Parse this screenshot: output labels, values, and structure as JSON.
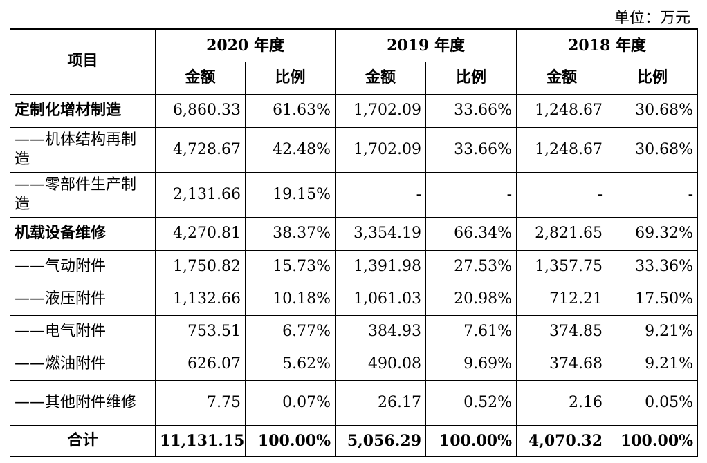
{
  "unit": "单位：万元",
  "header": {
    "item": "项目",
    "years": [
      "2020 年度",
      "2019 年度",
      "2018 年度"
    ],
    "amount": "金额",
    "ratio": "比例"
  },
  "rows": [
    {
      "label": "定制化增材制造",
      "bold": true,
      "cells": [
        "6,860.33",
        "61.63%",
        "1,702.09",
        "33.66%",
        "1,248.67",
        "30.68%"
      ]
    },
    {
      "label": "——机体结构再制造",
      "bold": false,
      "cells": [
        "4,728.67",
        "42.48%",
        "1,702.09",
        "33.66%",
        "1,248.67",
        "30.68%"
      ]
    },
    {
      "label": "——零部件生产制造",
      "bold": false,
      "cells": [
        "2,131.66",
        "19.15%",
        "-",
        "-",
        "-",
        "-"
      ]
    },
    {
      "label": "机载设备维修",
      "bold": true,
      "cells": [
        "4,270.81",
        "38.37%",
        "3,354.19",
        "66.34%",
        "2,821.65",
        "69.32%"
      ]
    },
    {
      "label": "——气动附件",
      "bold": false,
      "cells": [
        "1,750.82",
        "15.73%",
        "1,391.98",
        "27.53%",
        "1,357.75",
        "33.36%"
      ]
    },
    {
      "label": "——液压附件",
      "bold": false,
      "cells": [
        "1,132.66",
        "10.18%",
        "1,061.03",
        "20.98%",
        "712.21",
        "17.50%"
      ]
    },
    {
      "label": "——电气附件",
      "bold": false,
      "cells": [
        "753.51",
        "6.77%",
        "384.93",
        "7.61%",
        "374.85",
        "9.21%"
      ]
    },
    {
      "label": "——燃油附件",
      "bold": false,
      "cells": [
        "626.07",
        "5.62%",
        "490.08",
        "9.69%",
        "374.68",
        "9.21%"
      ]
    },
    {
      "label": "——其他附件维修",
      "bold": false,
      "cells": [
        "7.75",
        "0.07%",
        "26.17",
        "0.52%",
        "2.16",
        "0.05%"
      ]
    }
  ],
  "total": {
    "label": "合计",
    "cells": [
      "11,131.15",
      "100.00%",
      "5,056.29",
      "100.00%",
      "4,070.32",
      "100.00%"
    ]
  }
}
